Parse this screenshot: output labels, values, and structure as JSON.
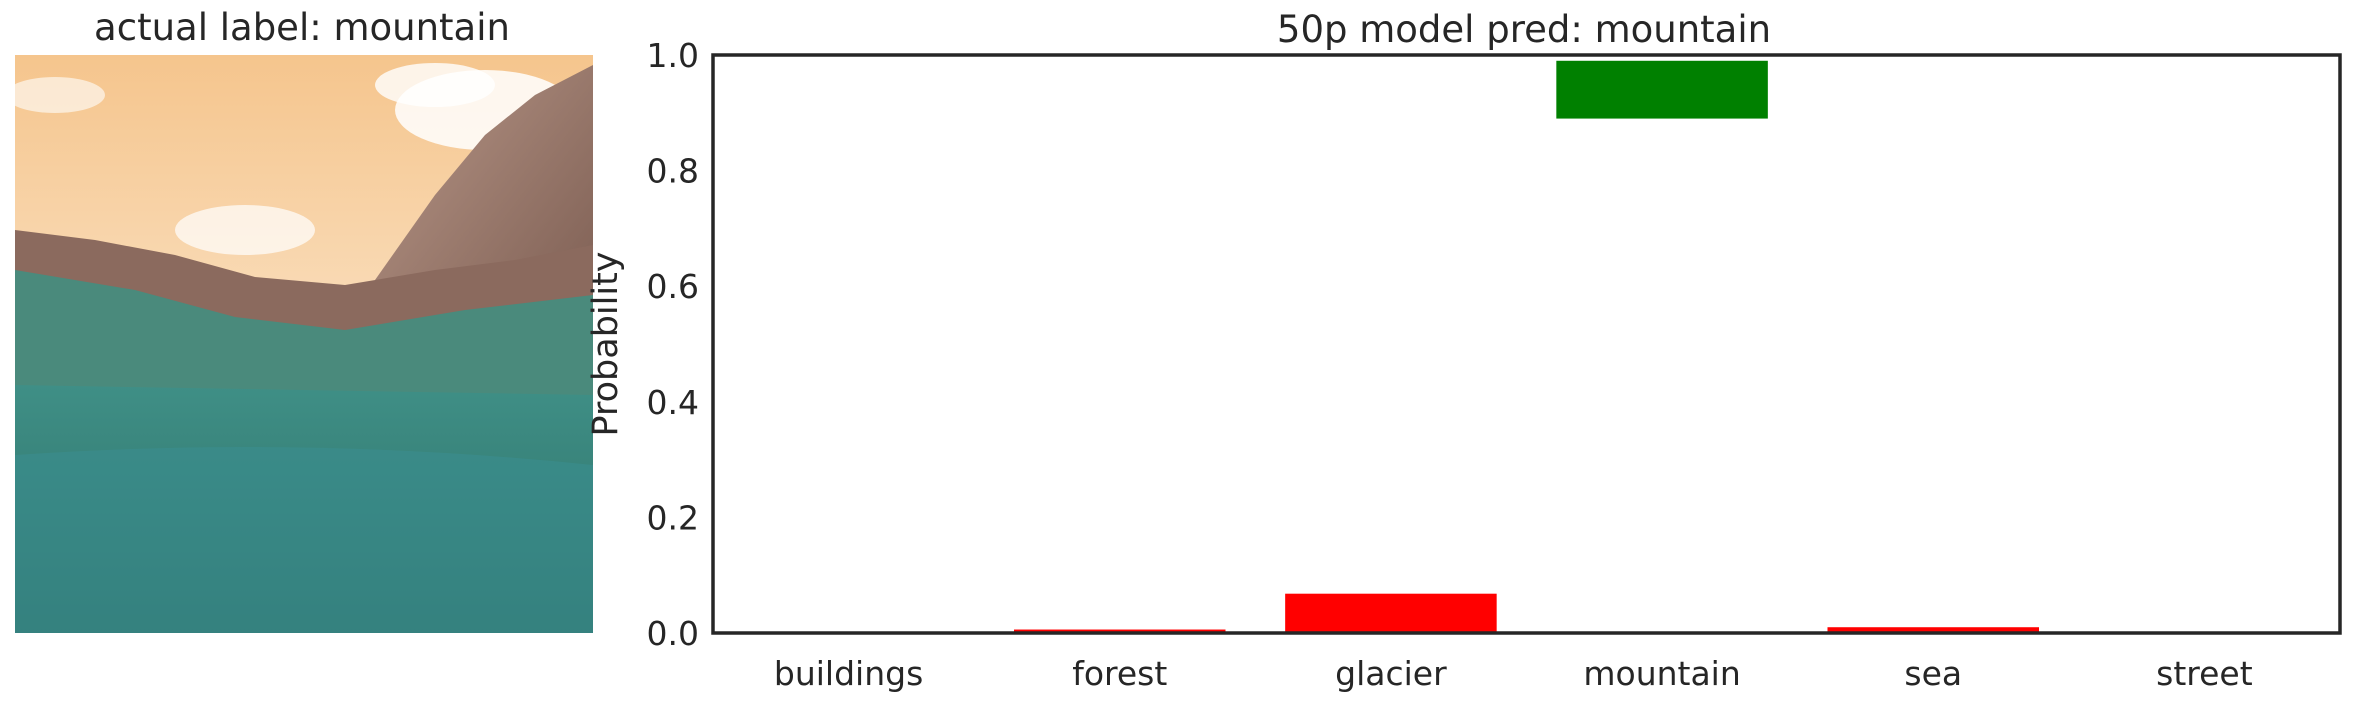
{
  "left_panel": {
    "title": "actual label: mountain"
  },
  "chart_data": {
    "type": "bar",
    "title": "50p model pred: mountain",
    "xlabel": "",
    "ylabel": "Probability",
    "ylim": [
      0,
      1
    ],
    "yticks": [
      "0.0",
      "0.2",
      "0.4",
      "0.6",
      "0.8",
      "1.0"
    ],
    "categories": [
      "buildings",
      "forest",
      "glacier",
      "mountain",
      "sea",
      "street"
    ],
    "bars": [
      {
        "category": "buildings",
        "bottom": 0.0,
        "top": 0.001,
        "color": "#ff0000"
      },
      {
        "category": "forest",
        "bottom": 0.0,
        "top": 0.006,
        "color": "#ff0000"
      },
      {
        "category": "glacier",
        "bottom": 0.0,
        "top": 0.068,
        "color": "#ff0000"
      },
      {
        "category": "mountain",
        "bottom": 0.89,
        "top": 0.99,
        "color": "#008000"
      },
      {
        "category": "sea",
        "bottom": 0.0,
        "top": 0.01,
        "color": "#ff0000"
      },
      {
        "category": "street",
        "bottom": 0.0,
        "top": 0.001,
        "color": "#ff0000"
      }
    ],
    "grid": false
  }
}
